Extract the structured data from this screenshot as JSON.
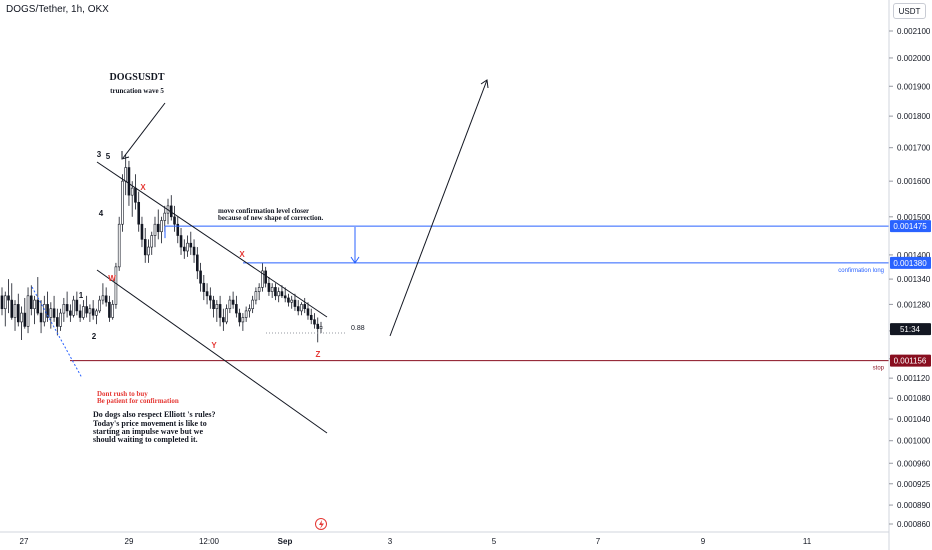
{
  "header": {
    "title": "DOGS/Tether, 1h, OKX",
    "currency": "USDT"
  },
  "chart_data": {
    "type": "candlestick",
    "price_axis": {
      "ticks": [
        "0.002100",
        "0.002000",
        "0.001900",
        "0.001800",
        "0.001700",
        "0.001600",
        "0.001500",
        "0.001400",
        "0.001340",
        "0.001280",
        "0.001220",
        "0.001160",
        "0.001120",
        "0.001080",
        "0.001040",
        "0.001000",
        "0.000960",
        "0.000925",
        "0.000890",
        "0.000860"
      ],
      "tick_values": [
        0.0021,
        0.002,
        0.0019,
        0.0018,
        0.0017,
        0.0016,
        0.0015,
        0.0014,
        0.00134,
        0.00128,
        0.00122,
        0.00116,
        0.00112,
        0.00108,
        0.00104,
        0.001,
        0.00096,
        0.000925,
        0.00089,
        0.00086
      ],
      "scale": "log"
    },
    "time_axis": {
      "ticks": [
        "27",
        "29",
        "12:00",
        "Sep",
        "3",
        "5",
        "7",
        "9",
        "11"
      ]
    },
    "price_labels": [
      {
        "text": "0.001475",
        "value": 0.001475,
        "color": "#2962ff"
      },
      {
        "text": "0.001380",
        "value": 0.00138,
        "color": "#2962ff"
      },
      {
        "text": "51:34",
        "value": 0.001224,
        "color": "#131722"
      },
      {
        "text": "0.001156",
        "value": 0.001156,
        "color": "#880e1f"
      }
    ],
    "levels": [
      {
        "name": "confirmation-level-upper",
        "value": 0.001475,
        "color": "#2962ff"
      },
      {
        "name": "confirmation-level",
        "value": 0.00138,
        "color": "#2962ff",
        "label": "confirmation long"
      },
      {
        "name": "stop-level",
        "value": 0.001156,
        "color": "#880e1f",
        "label": "stop"
      }
    ],
    "wave_labels": [
      {
        "text": "1",
        "color": "#131722"
      },
      {
        "text": "2",
        "color": "#131722"
      },
      {
        "text": "3",
        "color": "#131722"
      },
      {
        "text": "5",
        "color": "#131722"
      },
      {
        "text": "4",
        "color": "#131722"
      },
      {
        "text": "W",
        "color": "#e53935"
      },
      {
        "text": "X",
        "color": "#e53935"
      },
      {
        "text": "Y",
        "color": "#e53935"
      },
      {
        "text": "X",
        "color": "#e53935"
      },
      {
        "text": "Z",
        "color": "#e53935"
      }
    ],
    "fib_label": "0.88",
    "annotations": {
      "title": "DOGSUSDT",
      "subtitle": "truncation wave 5",
      "move_note_1": "move confirmation level closer",
      "move_note_2": "because of new shape of correction.",
      "warn_1": "Dont rush to buy",
      "warn_2": "Be patient for confirmation",
      "question_lines": [
        "Do dogs also respect Elliott 's rules?",
        "Today's price movement is like to",
        "starting an impulse wave but we",
        "should waiting to completed it."
      ]
    },
    "candles": [
      [
        1300,
        1320,
        1255,
        1270
      ],
      [
        1270,
        1310,
        1230,
        1300
      ],
      [
        1300,
        1340,
        1260,
        1290
      ],
      [
        1290,
        1330,
        1245,
        1250
      ],
      [
        1250,
        1290,
        1220,
        1280
      ],
      [
        1280,
        1305,
        1230,
        1240
      ],
      [
        1240,
        1275,
        1200,
        1260
      ],
      [
        1260,
        1295,
        1225,
        1230
      ],
      [
        1230,
        1320,
        1215,
        1300
      ],
      [
        1300,
        1325,
        1255,
        1270
      ],
      [
        1270,
        1300,
        1235,
        1290
      ],
      [
        1290,
        1345,
        1255,
        1260
      ],
      [
        1260,
        1290,
        1215,
        1240
      ],
      [
        1240,
        1300,
        1230,
        1280
      ],
      [
        1280,
        1310,
        1240,
        1250
      ],
      [
        1250,
        1285,
        1225,
        1270
      ],
      [
        1270,
        1300,
        1240,
        1250
      ],
      [
        1250,
        1270,
        1210,
        1230
      ],
      [
        1230,
        1270,
        1220,
        1260
      ],
      [
        1260,
        1295,
        1240,
        1280
      ],
      [
        1280,
        1310,
        1250,
        1265
      ],
      [
        1265,
        1280,
        1240,
        1255
      ],
      [
        1255,
        1300,
        1250,
        1290
      ],
      [
        1290,
        1310,
        1255,
        1265
      ],
      [
        1265,
        1280,
        1240,
        1250
      ],
      [
        1250,
        1290,
        1245,
        1275
      ],
      [
        1275,
        1300,
        1250,
        1260
      ],
      [
        1260,
        1280,
        1240,
        1270
      ],
      [
        1270,
        1290,
        1245,
        1255
      ],
      [
        1255,
        1270,
        1235,
        1265
      ],
      [
        1265,
        1300,
        1260,
        1290
      ],
      [
        1290,
        1330,
        1280,
        1300
      ],
      [
        1300,
        1320,
        1275,
        1285
      ],
      [
        1285,
        1300,
        1240,
        1250
      ],
      [
        1250,
        1290,
        1245,
        1280
      ],
      [
        1280,
        1380,
        1270,
        1370
      ],
      [
        1370,
        1500,
        1360,
        1480
      ],
      [
        1480,
        1620,
        1460,
        1600
      ],
      [
        1600,
        1680,
        1560,
        1640
      ],
      [
        1640,
        1660,
        1530,
        1560
      ],
      [
        1560,
        1600,
        1500,
        1580
      ],
      [
        1580,
        1620,
        1520,
        1540
      ],
      [
        1540,
        1570,
        1460,
        1480
      ],
      [
        1480,
        1500,
        1420,
        1440
      ],
      [
        1440,
        1470,
        1380,
        1400
      ],
      [
        1400,
        1440,
        1380,
        1420
      ],
      [
        1420,
        1460,
        1400,
        1450
      ],
      [
        1450,
        1500,
        1420,
        1480
      ],
      [
        1480,
        1520,
        1440,
        1460
      ],
      [
        1460,
        1500,
        1430,
        1490
      ],
      [
        1490,
        1530,
        1460,
        1510
      ],
      [
        1510,
        1550,
        1480,
        1530
      ],
      [
        1530,
        1560,
        1490,
        1500
      ],
      [
        1500,
        1530,
        1460,
        1480
      ],
      [
        1480,
        1500,
        1430,
        1450
      ],
      [
        1450,
        1470,
        1400,
        1420
      ],
      [
        1420,
        1440,
        1390,
        1410
      ],
      [
        1410,
        1450,
        1395,
        1430
      ],
      [
        1430,
        1460,
        1400,
        1420
      ],
      [
        1420,
        1440,
        1380,
        1400
      ],
      [
        1400,
        1420,
        1340,
        1360
      ],
      [
        1360,
        1380,
        1310,
        1330
      ],
      [
        1330,
        1350,
        1290,
        1310
      ],
      [
        1310,
        1330,
        1280,
        1300
      ],
      [
        1300,
        1320,
        1270,
        1290
      ],
      [
        1290,
        1300,
        1250,
        1270
      ],
      [
        1270,
        1290,
        1240,
        1280
      ],
      [
        1280,
        1300,
        1230,
        1250
      ],
      [
        1250,
        1270,
        1220,
        1240
      ],
      [
        1240,
        1280,
        1235,
        1270
      ],
      [
        1270,
        1300,
        1260,
        1290
      ],
      [
        1290,
        1310,
        1270,
        1280
      ],
      [
        1280,
        1300,
        1250,
        1260
      ],
      [
        1260,
        1270,
        1230,
        1240
      ],
      [
        1240,
        1260,
        1220,
        1250
      ],
      [
        1250,
        1275,
        1240,
        1265
      ],
      [
        1265,
        1280,
        1250,
        1270
      ],
      [
        1270,
        1300,
        1260,
        1290
      ],
      [
        1290,
        1320,
        1280,
        1310
      ],
      [
        1310,
        1330,
        1290,
        1320
      ],
      [
        1320,
        1380,
        1310,
        1360
      ],
      [
        1360,
        1370,
        1320,
        1330
      ],
      [
        1330,
        1345,
        1300,
        1310
      ],
      [
        1310,
        1330,
        1295,
        1320
      ],
      [
        1320,
        1330,
        1290,
        1300
      ],
      [
        1300,
        1320,
        1285,
        1310
      ],
      [
        1310,
        1325,
        1295,
        1300
      ],
      [
        1300,
        1320,
        1285,
        1295
      ],
      [
        1295,
        1305,
        1275,
        1285
      ],
      [
        1285,
        1300,
        1270,
        1290
      ],
      [
        1290,
        1305,
        1265,
        1275
      ],
      [
        1275,
        1290,
        1255,
        1265
      ],
      [
        1265,
        1285,
        1255,
        1280
      ],
      [
        1280,
        1295,
        1260,
        1270
      ],
      [
        1270,
        1285,
        1245,
        1255
      ],
      [
        1255,
        1270,
        1235,
        1245
      ],
      [
        1245,
        1260,
        1225,
        1235
      ],
      [
        1235,
        1250,
        1195,
        1225
      ],
      [
        1225,
        1240,
        1215,
        1230
      ]
    ]
  }
}
